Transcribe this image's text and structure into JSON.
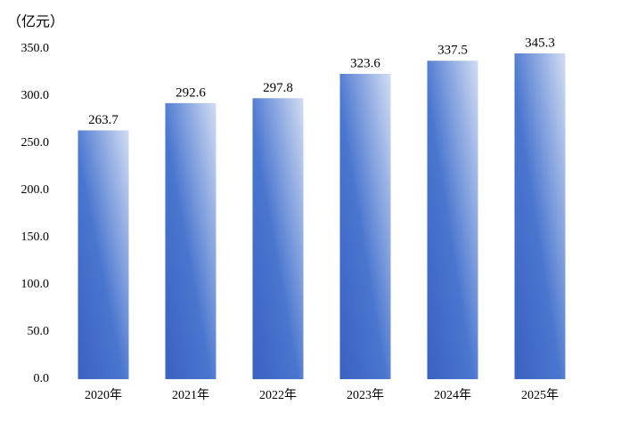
{
  "chart_data": {
    "type": "bar",
    "y_axis_label": "（亿元）",
    "categories": [
      "2020年",
      "2021年",
      "2022年",
      "2023年",
      "2024年",
      "2025年"
    ],
    "values": [
      263.7,
      292.6,
      297.8,
      323.6,
      337.5,
      345.3
    ],
    "color": "#3a62c0",
    "ylim": [
      0,
      350
    ],
    "yticks": [
      {
        "value": 0,
        "label": "0.0"
      },
      {
        "value": 50,
        "label": "50.0"
      },
      {
        "value": 100,
        "label": "100.0"
      },
      {
        "value": 150,
        "label": "150.0"
      },
      {
        "value": 200,
        "label": "200.0"
      },
      {
        "value": 250,
        "label": "250.0"
      },
      {
        "value": 300,
        "label": "300.0"
      },
      {
        "value": 350,
        "label": "350.0"
      }
    ],
    "grid": false
  }
}
